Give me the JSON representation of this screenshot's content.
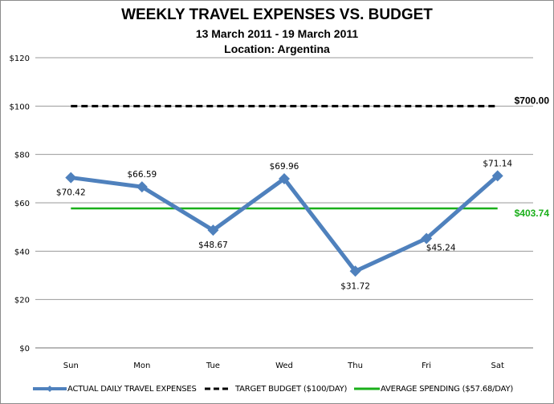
{
  "chart_data": {
    "type": "line",
    "title": "WEEKLY TRAVEL EXPENSES VS. BUDGET",
    "subtitle": "13 March 2011 - 19 March 2011",
    "subtitle2": "Location: Argentina",
    "xlabel": "",
    "ylabel": "",
    "categories": [
      "Sun",
      "Mon",
      "Tue",
      "Wed",
      "Thu",
      "Fri",
      "Sat"
    ],
    "y_ticks": [
      "$0",
      "$20",
      "$40",
      "$60",
      "$80",
      "$100",
      "$120"
    ],
    "ylim": [
      0,
      120
    ],
    "grid": true,
    "legend_position": "bottom",
    "series": [
      {
        "name": "ACTUAL DAILY TRAVEL EXPENSES",
        "color": "#4f81bd",
        "style": "solid-with-diamond-markers",
        "values": [
          70.42,
          66.59,
          48.67,
          69.96,
          31.72,
          45.24,
          71.14
        ],
        "labels": [
          "$70.42",
          "$66.59",
          "$48.67",
          "$69.96",
          "$31.72",
          "$45.24",
          "$71.14"
        ]
      },
      {
        "name": "TARGET BUDGET ($100/DAY)",
        "color": "#000000",
        "style": "dashed",
        "values": [
          100,
          100,
          100,
          100,
          100,
          100,
          100
        ],
        "end_label": "$700.00"
      },
      {
        "name": "AVERAGE SPENDING ($57.68/DAY)",
        "color": "#1aaf1a",
        "style": "solid",
        "values": [
          57.68,
          57.68,
          57.68,
          57.68,
          57.68,
          57.68,
          57.68
        ],
        "end_label": "$403.74"
      }
    ]
  },
  "header": {
    "title": "WEEKLY TRAVEL EXPENSES VS. BUDGET",
    "subtitle": "13 March 2011 - 19 March 2011",
    "location": "Location: Argentina"
  },
  "legend": {
    "actual": "ACTUAL DAILY TRAVEL  EXPENSES",
    "target": "TARGET BUDGET ($100/DAY)",
    "average": "AVERAGE SPENDING ($57.68/DAY)"
  },
  "annotations": {
    "budget_total": "$700.00",
    "average_total": "$403.74"
  }
}
